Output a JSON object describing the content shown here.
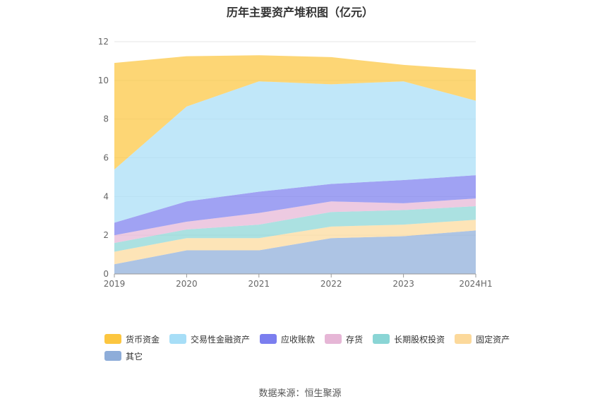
{
  "title": "历年主要资产堆积图（亿元）",
  "source": "数据来源：恒生聚源",
  "chart_data": {
    "type": "area",
    "stacked": true,
    "categories": [
      "2019",
      "2020",
      "2021",
      "2022",
      "2023",
      "2024H1"
    ],
    "ylim": [
      0,
      12
    ],
    "yticks": [
      0,
      2,
      4,
      6,
      8,
      10,
      12
    ],
    "grid": true,
    "legend_position": "bottom",
    "series": [
      {
        "name": "其它",
        "color": "#8EADD9",
        "values": [
          0.5,
          1.22,
          1.22,
          1.85,
          1.95,
          2.25
        ]
      },
      {
        "name": "固定资产",
        "color": "#FCD99B",
        "values": [
          0.65,
          0.63,
          0.63,
          0.6,
          0.6,
          0.55
        ]
      },
      {
        "name": "长期股权投资",
        "color": "#8AD5D5",
        "values": [
          0.45,
          0.45,
          0.7,
          0.75,
          0.75,
          0.7
        ]
      },
      {
        "name": "存货",
        "color": "#E6B6D6",
        "values": [
          0.4,
          0.4,
          0.6,
          0.55,
          0.35,
          0.4
        ]
      },
      {
        "name": "应收账款",
        "color": "#7B7EEF",
        "values": [
          0.65,
          1.05,
          1.1,
          0.9,
          1.2,
          1.2
        ]
      },
      {
        "name": "交易性金融资产",
        "color": "#A7DEF7",
        "values": [
          2.75,
          4.9,
          5.7,
          5.15,
          5.1,
          3.85
        ]
      },
      {
        "name": "货币资金",
        "color": "#FCC640",
        "values": [
          5.5,
          2.6,
          1.35,
          1.4,
          0.85,
          1.6
        ]
      }
    ],
    "legend_order": [
      "货币资金",
      "交易性金融资产",
      "应收账款",
      "存货",
      "长期股权投资",
      "固定资产",
      "其它"
    ]
  }
}
